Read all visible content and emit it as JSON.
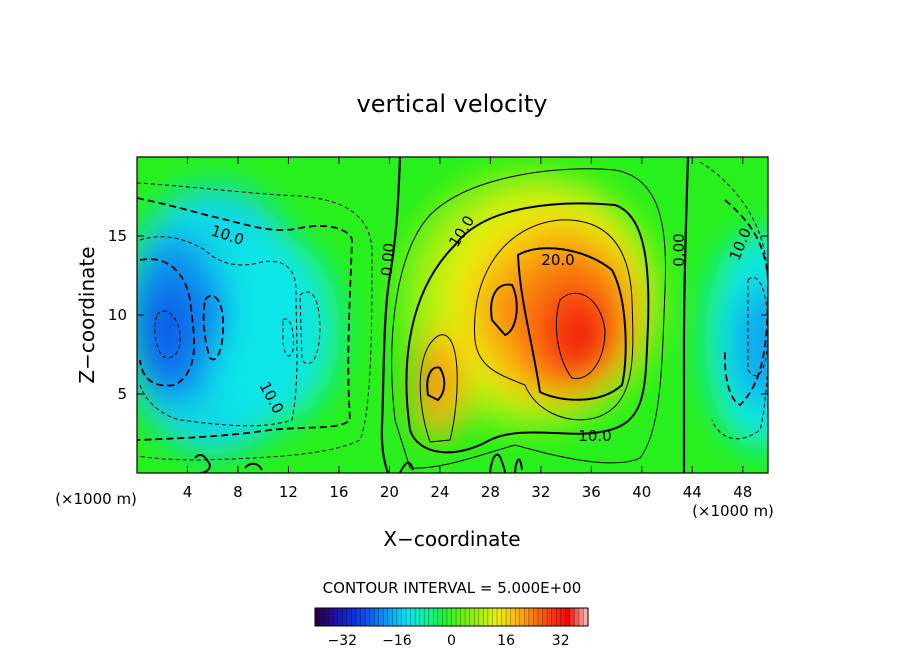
{
  "chart_data": {
    "type": "heatmap",
    "title": "vertical velocity",
    "xlabel": "X−coordinate",
    "ylabel": "Z−coordinate",
    "x_unit_left": "(×1000 m)",
    "x_unit_right": "(×1000 m)",
    "xlim": [
      0,
      50
    ],
    "ylim": [
      0,
      20
    ],
    "x_ticks": [
      4,
      8,
      12,
      16,
      20,
      24,
      28,
      32,
      36,
      40,
      44,
      48
    ],
    "y_ticks": [
      5,
      10,
      15
    ],
    "contour_interval_label": "CONTOUR INTERVAL = 5.000E+00",
    "colorbar": {
      "range": [
        -40,
        40
      ],
      "ticks": [
        -32,
        -16,
        0,
        16,
        32
      ],
      "colors": [
        "#2a004c",
        "#1f10a0",
        "#1030d8",
        "#1060f0",
        "#10a0f0",
        "#10e0f0",
        "#10f0a0",
        "#20f040",
        "#60f010",
        "#a0f010",
        "#e8f010",
        "#f8c010",
        "#f88010",
        "#f84010",
        "#f00808",
        "#f8b0a8"
      ]
    },
    "contour_labels": [
      "10.0",
      "0.00",
      "10.0",
      "20.0",
      "0.00",
      "10.0",
      "10.0",
      "10.0"
    ],
    "features": [
      {
        "sign": "down",
        "x": 3.5,
        "z": 8.5,
        "peak": -28
      },
      {
        "sign": "down",
        "x": 6.5,
        "z": 10,
        "peak": -18
      },
      {
        "sign": "down",
        "x": 12,
        "z": 9,
        "peak": -12
      },
      {
        "sign": "up",
        "x": 24,
        "z": 6,
        "peak": 22
      },
      {
        "sign": "up",
        "x": 30,
        "z": 10,
        "peak": 20
      },
      {
        "sign": "up",
        "x": 34.5,
        "z": 9,
        "peak": 32
      },
      {
        "sign": "down",
        "x": 50,
        "z": 8,
        "peak": -22
      }
    ]
  }
}
